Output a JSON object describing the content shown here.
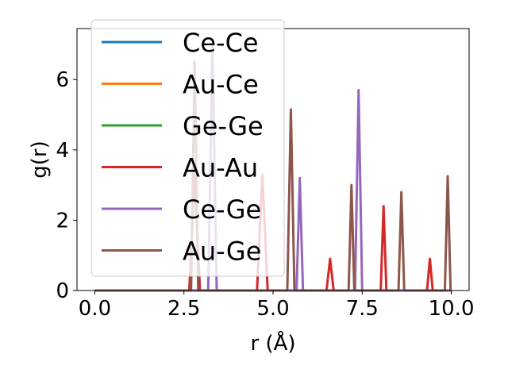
{
  "chart_data": {
    "type": "line",
    "xlabel": "r (Å)",
    "ylabel": "g(r)",
    "xlim": [
      -0.5,
      10.5
    ],
    "ylim": [
      0,
      7.45
    ],
    "xticks": [
      0.0,
      2.5,
      5.0,
      7.5,
      10.0
    ],
    "xtick_labels": [
      "0.0",
      "2.5",
      "5.0",
      "7.5",
      "10.0"
    ],
    "yticks": [
      0,
      2,
      4,
      6
    ],
    "ytick_labels": [
      "0",
      "2",
      "4",
      "6"
    ],
    "grid": false,
    "legend_position": "top-left",
    "series": [
      {
        "name": "Ce-Ce",
        "color": "#1f77b4",
        "x": [
          0.0,
          10.0
        ],
        "y": [
          0.0,
          0.0
        ]
      },
      {
        "name": "Au-Ce",
        "color": "#ff7f0e",
        "x": [
          0.0,
          10.0
        ],
        "y": [
          0.0,
          0.0
        ]
      },
      {
        "name": "Ge-Ge",
        "color": "#2ca02c",
        "x": [
          0.0,
          10.0
        ],
        "y": [
          0.0,
          0.0
        ]
      },
      {
        "name": "Au-Au",
        "color": "#d62728",
        "x": [
          0.0,
          2.65,
          2.8,
          2.95,
          4.55,
          4.7,
          4.85,
          6.5,
          6.6,
          6.7,
          8.02,
          8.1,
          8.18,
          9.32,
          9.4,
          9.48,
          10.0
        ],
        "y": [
          0.0,
          0.0,
          3.3,
          0.0,
          0.0,
          3.3,
          0.0,
          0.0,
          0.9,
          0.0,
          0.0,
          2.4,
          0.0,
          0.0,
          0.9,
          0.0,
          0.0
        ]
      },
      {
        "name": "Ce-Ge",
        "color": "#9467bd",
        "x": [
          0.0,
          3.18,
          3.3,
          3.42,
          5.66,
          5.75,
          5.84,
          7.3,
          7.4,
          7.5,
          10.0
        ],
        "y": [
          0.0,
          0.0,
          7.0,
          0.0,
          0.0,
          3.2,
          0.0,
          0.0,
          5.7,
          0.0,
          0.0
        ]
      },
      {
        "name": "Au-Ge",
        "color": "#8c564b",
        "x": [
          0.0,
          2.7,
          2.8,
          2.9,
          5.4,
          5.5,
          5.6,
          7.12,
          7.2,
          7.28,
          8.52,
          8.6,
          8.68,
          9.82,
          9.9,
          9.98,
          10.0
        ],
        "y": [
          0.0,
          0.0,
          6.5,
          0.0,
          0.0,
          5.15,
          0.0,
          0.0,
          3.0,
          0.0,
          0.0,
          2.8,
          0.0,
          0.0,
          3.25,
          0.0,
          0.0
        ]
      }
    ]
  }
}
